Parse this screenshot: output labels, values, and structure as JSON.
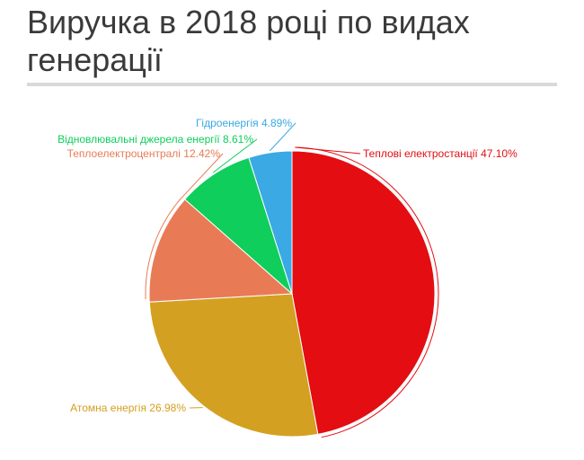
{
  "title": "Виручка в 2018 році по видах генерації",
  "chart_data": {
    "type": "pie",
    "title": "Виручка в 2018 році по видах генерації",
    "slices": [
      {
        "name": "Теплові електростанції",
        "value": 47.1,
        "label": "Теплові електростанції 47.10%",
        "color": "#e30d12"
      },
      {
        "name": "Атомна енергія",
        "value": 26.98,
        "label": "Атомна енергія 26.98%",
        "color": "#d3a021"
      },
      {
        "name": "Теплоелектроцентралі",
        "value": 12.42,
        "label": "Теплоелектроцентралі 12.42%",
        "color": "#e87b55"
      },
      {
        "name": "Відновлювальні джерела енергії",
        "value": 8.61,
        "label": "Відновлювальні джерела енергії 8.61%",
        "color": "#0fce5c"
      },
      {
        "name": "Гідроенергія",
        "value": 4.89,
        "label": "Гідроенергія 4.89%",
        "color": "#3aa9e4"
      }
    ]
  }
}
